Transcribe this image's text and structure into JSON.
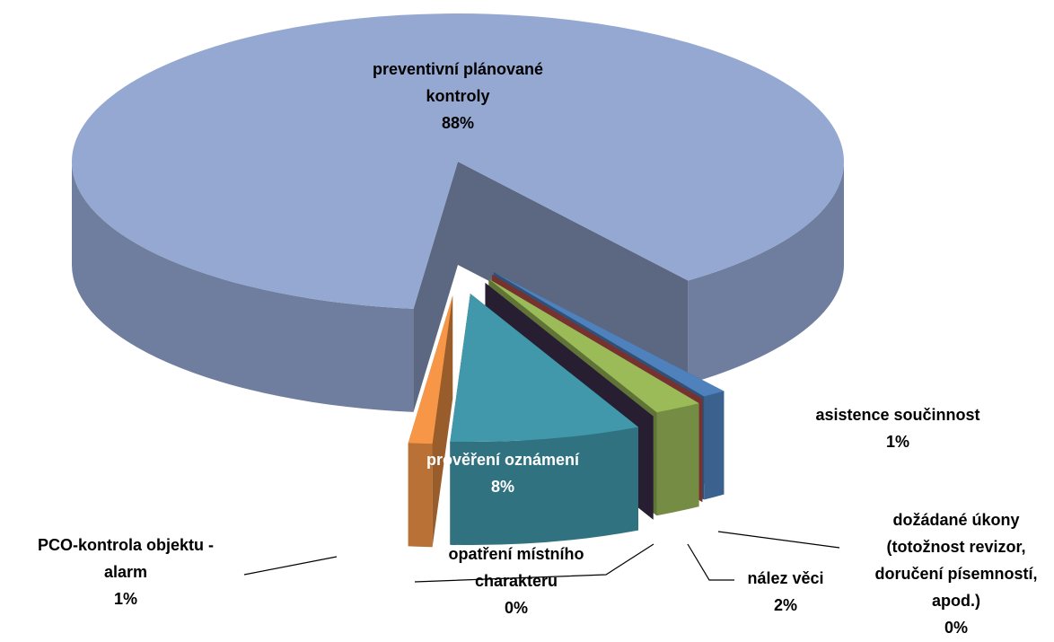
{
  "chart_data": {
    "type": "pie",
    "categories": [
      "preventivní plánované kontroly",
      "asistence součinnost",
      "dožádané úkony (totožnost revizor, doručení písemností, apod.)",
      "nález věci",
      "opatření místního charakteru",
      "prověření oznámení",
      "PCO-kontrola objektu - alarm"
    ],
    "values": [
      88,
      1,
      0,
      2,
      0,
      8,
      1
    ],
    "value_labels": [
      "88%",
      "1%",
      "0%",
      "2%",
      "0%",
      "8%",
      "1%"
    ],
    "colors": [
      "#94a8d2",
      "#4f81bd",
      "#c0504d",
      "#9bbb59",
      "#3f3151",
      "#4198ab",
      "#f79646"
    ]
  }
}
